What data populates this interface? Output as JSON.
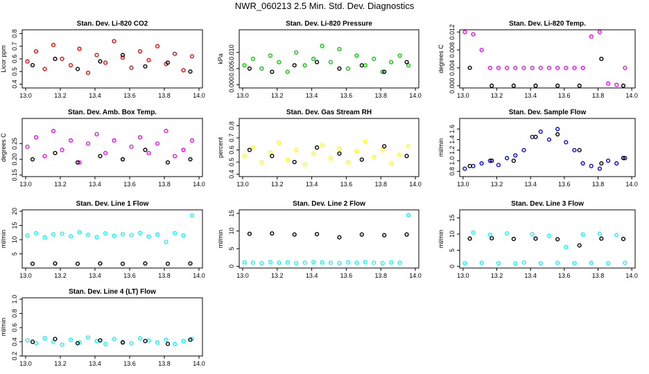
{
  "title": "NWR_060213  2.5 Min. Std. Dev. Diagnostics",
  "chart_data": [
    {
      "type": "scatter",
      "title": "Stan. Dev. Li-820 CO2",
      "ylabel": "Licor ppm",
      "xlim": [
        12.98,
        14.02
      ],
      "xticks": [
        {
          "value": 13,
          "label": "13.0"
        },
        13.2,
        13.4,
        13.6,
        13.8,
        {
          "value": 14,
          "label": "14.0"
        }
      ],
      "ylim": [
        0.37,
        0.83
      ],
      "yticks": [
        0.4,
        0.5,
        0.6,
        0.7,
        0.8
      ],
      "series": [
        {
          "color": "#ff0000",
          "x": [
            13.01,
            13.06,
            13.11,
            13.16,
            13.21,
            13.26,
            13.31,
            13.36,
            13.41,
            13.46,
            13.51,
            13.56,
            13.61,
            13.66,
            13.71,
            13.76,
            13.81,
            13.86,
            13.91,
            13.96
          ],
          "values": [
            0.58,
            0.66,
            0.52,
            0.71,
            0.6,
            0.55,
            0.68,
            0.49,
            0.63,
            0.57,
            0.74,
            0.61,
            0.53,
            0.66,
            0.59,
            0.7,
            0.56,
            0.64,
            0.51,
            0.62
          ]
        },
        {
          "color": "#000000",
          "x": [
            13.04,
            13.17,
            13.3,
            13.43,
            13.56,
            13.69,
            13.82,
            13.95
          ],
          "values": [
            0.55,
            0.6,
            0.52,
            0.58,
            0.63,
            0.54,
            0.57,
            0.5
          ]
        }
      ]
    },
    {
      "type": "scatter",
      "title": "Stan. Dev. Li-820 Pressure",
      "ylabel": "kPa",
      "xlim": [
        12.98,
        14.02
      ],
      "xticks": [
        {
          "value": 13,
          "label": "13.0"
        },
        13.2,
        13.4,
        13.6,
        13.8,
        {
          "value": 14,
          "label": "14.0"
        }
      ],
      "ylim": [
        -0.001,
        0.017
      ],
      "yticks": [
        {
          "value": 0,
          "label": "0.000"
        },
        0.005,
        {
          "value": 0.01,
          "label": "0.010"
        }
      ],
      "series": [
        {
          "color": "#00cc00",
          "x": [
            13.01,
            13.06,
            13.11,
            13.16,
            13.21,
            13.26,
            13.31,
            13.36,
            13.41,
            13.46,
            13.51,
            13.56,
            13.61,
            13.66,
            13.71,
            13.76,
            13.81,
            13.86,
            13.91,
            13.96
          ],
          "values": [
            0.006,
            0.008,
            0.005,
            0.009,
            0.007,
            0.004,
            0.01,
            0.006,
            0.008,
            0.012,
            0.007,
            0.011,
            0.005,
            0.009,
            0.006,
            0.008,
            0.004,
            0.007,
            0.009,
            0.006
          ]
        },
        {
          "color": "#000000",
          "x": [
            13.04,
            13.17,
            13.3,
            13.43,
            13.56,
            13.69,
            13.82,
            13.95
          ],
          "values": [
            0.005,
            0.004,
            0.006,
            0.007,
            0.005,
            0.006,
            0.004,
            0.007
          ]
        }
      ]
    },
    {
      "type": "scatter",
      "title": "Stan. Dev. Li-820 Temp.",
      "ylabel": "degrees C",
      "xlim": [
        12.98,
        14.02
      ],
      "xticks": [
        {
          "value": 13,
          "label": "13.0"
        },
        13.2,
        13.4,
        13.6,
        13.8,
        {
          "value": 14,
          "label": "14.0"
        }
      ],
      "ylim": [
        -0.0005,
        0.0125
      ],
      "yticks": [
        {
          "value": 0,
          "label": "0.000"
        },
        0.004,
        0.008,
        0.012
      ],
      "series": [
        {
          "color": "#ff00ff",
          "x": [
            13.01,
            13.06,
            13.11,
            13.16,
            13.21,
            13.26,
            13.31,
            13.36,
            13.41,
            13.46,
            13.51,
            13.56,
            13.61,
            13.66,
            13.71,
            13.76,
            13.81,
            13.86,
            13.91,
            13.96
          ],
          "values": [
            0.012,
            0.0115,
            0.008,
            0.004,
            0.004,
            0.004,
            0.004,
            0.004,
            0.004,
            0.004,
            0.004,
            0.004,
            0.004,
            0.004,
            0.004,
            0.011,
            0.012,
            0.0005,
            0.0002,
            0.004
          ]
        },
        {
          "color": "#000000",
          "x": [
            13.04,
            13.17,
            13.3,
            13.43,
            13.56,
            13.69,
            13.82,
            13.95
          ],
          "values": [
            0.004,
            0,
            0,
            0,
            0,
            0,
            0.006,
            0
          ]
        }
      ]
    },
    {
      "type": "scatter",
      "title": "Stan. Dev. Amb. Box Temp.",
      "ylabel": "degrees C",
      "xlim": [
        12.98,
        14.02
      ],
      "xticks": [
        {
          "value": 13,
          "label": "13.0"
        },
        13.2,
        13.4,
        13.6,
        13.8,
        {
          "value": 14,
          "label": "14.0"
        }
      ],
      "ylim": [
        0.145,
        0.33
      ],
      "yticks": [
        0.15,
        {
          "value": 0.2,
          "label": "0.20"
        },
        0.25
      ],
      "series": [
        {
          "color": "#ff00ff",
          "x": [
            13.01,
            13.06,
            13.11,
            13.16,
            13.21,
            13.26,
            13.31,
            13.36,
            13.41,
            13.46,
            13.51,
            13.56,
            13.61,
            13.66,
            13.71,
            13.76,
            13.81,
            13.86,
            13.91,
            13.96
          ],
          "values": [
            0.24,
            0.27,
            0.21,
            0.29,
            0.23,
            0.26,
            0.19,
            0.25,
            0.28,
            0.22,
            0.26,
            0.2,
            0.24,
            0.27,
            0.22,
            0.25,
            0.29,
            0.21,
            0.23,
            0.26
          ]
        },
        {
          "color": "#000000",
          "x": [
            13.04,
            13.17,
            13.3,
            13.43,
            13.56,
            13.69,
            13.82,
            13.95
          ],
          "values": [
            0.2,
            0.22,
            0.19,
            0.21,
            0.2,
            0.23,
            0.19,
            0.2
          ]
        }
      ]
    },
    {
      "type": "scatter",
      "title": "Stan. Dev. Gas Stream RH",
      "ylabel": "percent",
      "xlim": [
        12.98,
        14.02
      ],
      "xticks": [
        {
          "value": 13,
          "label": "13.0"
        },
        13.2,
        13.4,
        13.6,
        13.8,
        {
          "value": 14,
          "label": "14.0"
        }
      ],
      "ylim": [
        0.38,
        0.86
      ],
      "yticks": [
        0.4,
        0.5,
        0.6,
        0.7,
        0.8
      ],
      "series": [
        {
          "color": "#ffff00",
          "x": [
            13.01,
            13.06,
            13.11,
            13.16,
            13.21,
            13.26,
            13.31,
            13.36,
            13.41,
            13.46,
            13.51,
            13.56,
            13.61,
            13.66,
            13.71,
            13.76,
            13.81,
            13.86,
            13.91,
            13.96
          ],
          "values": [
            0.55,
            0.62,
            0.5,
            0.58,
            0.66,
            0.52,
            0.6,
            0.48,
            0.57,
            0.64,
            0.53,
            0.61,
            0.5,
            0.59,
            0.67,
            0.54,
            0.6,
            0.49,
            0.56,
            0.63
          ]
        },
        {
          "color": "#000000",
          "x": [
            13.04,
            13.17,
            13.3,
            13.43,
            13.56,
            13.69,
            13.82,
            13.95
          ],
          "values": [
            0.6,
            0.55,
            0.5,
            0.62,
            0.57,
            0.52,
            0.63,
            0.55
          ]
        }
      ]
    },
    {
      "type": "scatter",
      "title": "Stan. Dev. Sample Flow",
      "ylabel": "ml/min",
      "xlim": [
        12.98,
        14.02
      ],
      "xticks": [
        {
          "value": 13,
          "label": "13.0"
        },
        13.2,
        13.4,
        13.6,
        13.8,
        {
          "value": 14,
          "label": "14.0"
        }
      ],
      "ylim": [
        0.7,
        1.8
      ],
      "yticks": [
        0.8,
        {
          "value": 1,
          "label": "1.0"
        },
        1.2,
        1.4,
        1.6
      ],
      "series": [
        {
          "color": "#0000ff",
          "x": [
            13.01,
            13.06,
            13.11,
            13.16,
            13.21,
            13.26,
            13.31,
            13.36,
            13.41,
            13.46,
            13.51,
            13.56,
            13.61,
            13.66,
            13.71,
            13.76,
            13.81,
            13.86,
            13.91,
            13.96
          ],
          "values": [
            0.85,
            0.9,
            0.95,
            1.0,
            0.92,
            1.05,
            1.1,
            1.2,
            1.45,
            1.55,
            1.4,
            1.6,
            1.35,
            1.2,
            0.95,
            0.9,
            0.85,
            1.0,
            0.95,
            1.05
          ]
        },
        {
          "color": "#000000",
          "x": [
            13.04,
            13.17,
            13.3,
            13.43,
            13.56,
            13.69,
            13.82,
            13.95
          ],
          "values": [
            0.9,
            1.0,
            1.0,
            1.45,
            1.5,
            1.2,
            0.95,
            1.05
          ]
        }
      ]
    },
    {
      "type": "scatter",
      "title": "Stan. Dev. Line 1 Flow",
      "ylabel": "ml/min",
      "xlim": [
        12.98,
        14.02
      ],
      "xticks": [
        {
          "value": 13,
          "label": "13.0"
        },
        13.2,
        13.4,
        13.6,
        13.8,
        {
          "value": 14,
          "label": "14.0"
        }
      ],
      "ylim": [
        0,
        20.5
      ],
      "yticks": [
        5,
        10,
        15,
        20
      ],
      "series": [
        {
          "color": "#00ffff",
          "x": [
            13.01,
            13.06,
            13.11,
            13.16,
            13.21,
            13.26,
            13.31,
            13.36,
            13.41,
            13.46,
            13.51,
            13.56,
            13.61,
            13.66,
            13.71,
            13.76,
            13.81,
            13.86,
            13.91,
            13.96
          ],
          "values": [
            11.5,
            12.3,
            10.8,
            11.9,
            12.1,
            11.2,
            12.6,
            11.7,
            10.9,
            12.2,
            11.4,
            12.0,
            11.6,
            12.4,
            11.1,
            11.8,
            9.2,
            12.3,
            11.5,
            18.5
          ]
        },
        {
          "color": "#000000",
          "x": [
            13.04,
            13.17,
            13.3,
            13.43,
            13.56,
            13.69,
            13.82,
            13.95
          ],
          "values": [
            1.5,
            1.6,
            1.5,
            1.6,
            1.5,
            1.6,
            1.5,
            1.6
          ]
        }
      ]
    },
    {
      "type": "scatter",
      "title": "Stan. Dev. Line 2 Flow",
      "ylabel": "ml/min",
      "xlim": [
        12.98,
        14.02
      ],
      "xticks": [
        {
          "value": 13,
          "label": "13.0"
        },
        13.2,
        13.4,
        13.6,
        13.8,
        {
          "value": 14,
          "label": "14.0"
        }
      ],
      "ylim": [
        -0.5,
        16
      ],
      "yticks": [
        0,
        5,
        10,
        15
      ],
      "series": [
        {
          "color": "#00ffff",
          "x": [
            13.01,
            13.06,
            13.11,
            13.16,
            13.21,
            13.26,
            13.31,
            13.36,
            13.41,
            13.46,
            13.51,
            13.56,
            13.61,
            13.66,
            13.71,
            13.76,
            13.81,
            13.86,
            13.91,
            13.96
          ],
          "values": [
            1.1,
            1.0,
            0.9,
            1.2,
            1.0,
            1.1,
            0.9,
            1.0,
            1.2,
            1.1,
            1.0,
            0.9,
            1.1,
            1.0,
            1.2,
            1.0,
            0.9,
            1.1,
            1.0,
            14.5
          ]
        },
        {
          "color": "#000000",
          "x": [
            13.04,
            13.17,
            13.3,
            13.43,
            13.56,
            13.69,
            13.82,
            13.95
          ],
          "values": [
            9.2,
            9.3,
            9.0,
            9.1,
            8.2,
            9.0,
            8.8,
            9.0
          ]
        }
      ]
    },
    {
      "type": "scatter",
      "title": "Stan. Dev. Line 3 Flow",
      "ylabel": "ml/min",
      "xlim": [
        12.98,
        14.02
      ],
      "xticks": [
        {
          "value": 13,
          "label": "13.0"
        },
        13.2,
        13.4,
        13.6,
        13.8,
        {
          "value": 14,
          "label": "14.0"
        }
      ],
      "ylim": [
        -0.5,
        17.5
      ],
      "yticks": [
        0,
        5,
        10,
        15
      ],
      "series": [
        {
          "color": "#00ffff",
          "x": [
            13.01,
            13.06,
            13.11,
            13.16,
            13.21,
            13.26,
            13.31,
            13.36,
            13.41,
            13.46,
            13.51,
            13.56,
            13.61,
            13.66,
            13.71,
            13.76,
            13.81,
            13.86,
            13.91,
            13.96
          ],
          "values": [
            1.0,
            10.5,
            1.1,
            9.8,
            1.0,
            10.2,
            0.9,
            1.2,
            10.0,
            1.0,
            9.5,
            1.1,
            6.0,
            1.0,
            9.9,
            1.1,
            10.1,
            1.0,
            9.7,
            1.1
          ]
        },
        {
          "color": "#000000",
          "x": [
            13.04,
            13.17,
            13.3,
            13.43,
            13.56,
            13.69,
            13.82,
            13.95
          ],
          "values": [
            8.6,
            8.7,
            8.5,
            8.6,
            8.4,
            6.5,
            8.6,
            8.5
          ]
        }
      ]
    },
    {
      "type": "scatter",
      "title": "Stan. Dev. Line 4 (LT) Flow",
      "ylabel": "ml/min",
      "xlim": [
        12.98,
        14.02
      ],
      "xticks": [
        {
          "value": 13,
          "label": "13.0"
        },
        13.2,
        13.4,
        13.6,
        13.8,
        {
          "value": 14,
          "label": "14.0"
        }
      ],
      "ylim": [
        0.2,
        1.02
      ],
      "yticks": [
        0.2,
        0.4,
        0.6,
        0.8,
        {
          "value": 1,
          "label": "1.0"
        }
      ],
      "series": [
        {
          "color": "#00ffff",
          "x": [
            13.01,
            13.06,
            13.11,
            13.16,
            13.21,
            13.26,
            13.31,
            13.36,
            13.41,
            13.46,
            13.51,
            13.56,
            13.61,
            13.66,
            13.71,
            13.76,
            13.81,
            13.86,
            13.91,
            13.96
          ],
          "values": [
            0.42,
            0.38,
            0.45,
            0.4,
            0.36,
            0.43,
            0.39,
            0.46,
            0.41,
            0.37,
            0.44,
            0.4,
            0.38,
            0.45,
            0.42,
            0.39,
            0.43,
            0.37,
            0.41,
            0.44
          ]
        },
        {
          "color": "#000000",
          "x": [
            13.04,
            13.17,
            13.3,
            13.43,
            13.56,
            13.69,
            13.82,
            13.95
          ],
          "values": [
            0.4,
            0.44,
            0.38,
            0.42,
            0.39,
            0.41,
            0.37,
            0.43
          ]
        }
      ]
    }
  ]
}
